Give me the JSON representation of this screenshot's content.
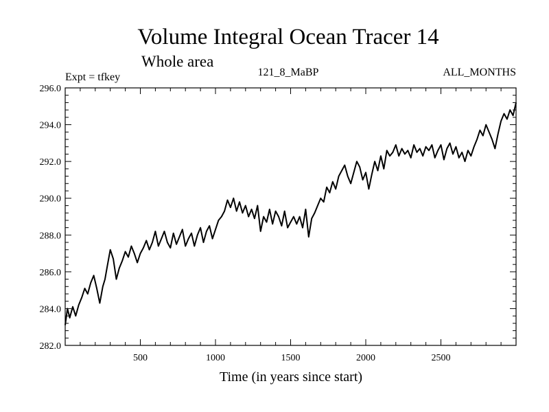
{
  "chart_data": {
    "type": "line",
    "title": "Volume Integral Ocean Tracer 14",
    "subtitle": "Whole area",
    "experiment": "Expt = tfkey",
    "run_id": "121_8_MaBP",
    "period": "ALL_MONTHS",
    "xlabel": "Time (in years since start)",
    "ylabel": "",
    "xlim": [
      0,
      3000
    ],
    "ylim": [
      282.0,
      296.0
    ],
    "x_ticks": [
      500,
      1000,
      1500,
      2000,
      2500
    ],
    "y_ticks": [
      "282.0",
      "284.0",
      "286.0",
      "288.0",
      "290.0",
      "292.0",
      "294.0",
      "296.0"
    ],
    "grid": false,
    "line_color": "#000000",
    "series": [
      {
        "x": [
          0,
          15,
          30,
          50,
          70,
          90,
          110,
          130,
          150,
          170,
          190,
          210,
          230,
          250,
          265,
          280,
          300,
          320,
          340,
          360,
          380,
          400,
          420,
          440,
          460,
          480,
          500,
          520,
          540,
          560,
          580,
          600,
          620,
          640,
          660,
          680,
          700,
          720,
          740,
          760,
          780,
          800,
          820,
          840,
          860,
          880,
          900,
          920,
          940,
          960,
          980,
          1000,
          1020,
          1040,
          1060,
          1080,
          1100,
          1120,
          1140,
          1160,
          1180,
          1200,
          1220,
          1240,
          1260,
          1280,
          1300,
          1320,
          1340,
          1360,
          1380,
          1400,
          1420,
          1440,
          1460,
          1480,
          1500,
          1520,
          1540,
          1560,
          1580,
          1600,
          1620,
          1640,
          1660,
          1680,
          1700,
          1720,
          1740,
          1760,
          1780,
          1800,
          1820,
          1840,
          1860,
          1880,
          1900,
          1920,
          1940,
          1960,
          1980,
          2000,
          2020,
          2040,
          2060,
          2080,
          2100,
          2120,
          2140,
          2160,
          2180,
          2200,
          2220,
          2240,
          2260,
          2280,
          2300,
          2320,
          2340,
          2360,
          2380,
          2400,
          2420,
          2440,
          2460,
          2480,
          2500,
          2520,
          2540,
          2560,
          2580,
          2600,
          2620,
          2640,
          2660,
          2680,
          2700,
          2720,
          2740,
          2760,
          2780,
          2800,
          2820,
          2840,
          2860,
          2880,
          2900,
          2920,
          2940,
          2960,
          2980,
          3000
        ],
        "values": [
          283.1,
          284.0,
          283.5,
          284.1,
          283.6,
          284.2,
          284.6,
          285.1,
          284.8,
          285.4,
          285.8,
          285.1,
          284.3,
          285.2,
          285.6,
          286.3,
          287.2,
          286.7,
          285.6,
          286.2,
          286.6,
          287.1,
          286.8,
          287.4,
          287.0,
          286.5,
          287.0,
          287.3,
          287.7,
          287.2,
          287.6,
          288.2,
          287.4,
          287.8,
          288.2,
          287.6,
          287.3,
          288.1,
          287.5,
          287.9,
          288.3,
          287.4,
          287.8,
          288.1,
          287.4,
          288.0,
          288.4,
          287.6,
          288.2,
          288.5,
          287.8,
          288.3,
          288.8,
          289.0,
          289.3,
          289.9,
          289.5,
          290.0,
          289.3,
          289.8,
          289.2,
          289.6,
          289.0,
          289.4,
          288.9,
          289.6,
          288.2,
          289.0,
          288.7,
          289.4,
          288.6,
          289.3,
          289.0,
          288.5,
          289.3,
          288.4,
          288.7,
          289.0,
          288.6,
          289.0,
          288.4,
          289.4,
          287.9,
          288.9,
          289.2,
          289.6,
          290.0,
          289.8,
          290.6,
          290.3,
          290.9,
          290.5,
          291.2,
          291.5,
          291.8,
          291.2,
          290.8,
          291.4,
          292.0,
          291.7,
          291.0,
          291.4,
          290.5,
          291.3,
          292.0,
          291.5,
          292.3,
          291.6,
          292.6,
          292.3,
          292.5,
          292.9,
          292.3,
          292.7,
          292.4,
          292.6,
          292.2,
          292.9,
          292.5,
          292.7,
          292.3,
          292.8,
          292.6,
          292.9,
          292.2,
          292.6,
          292.9,
          292.1,
          292.7,
          293.0,
          292.4,
          292.8,
          292.2,
          292.5,
          292.0,
          292.6,
          292.3,
          292.8,
          293.2,
          293.7,
          293.4,
          294.0,
          293.6,
          293.2,
          292.7,
          293.5,
          294.2,
          294.6,
          294.3,
          294.8,
          294.5,
          295.2
        ]
      }
    ]
  }
}
